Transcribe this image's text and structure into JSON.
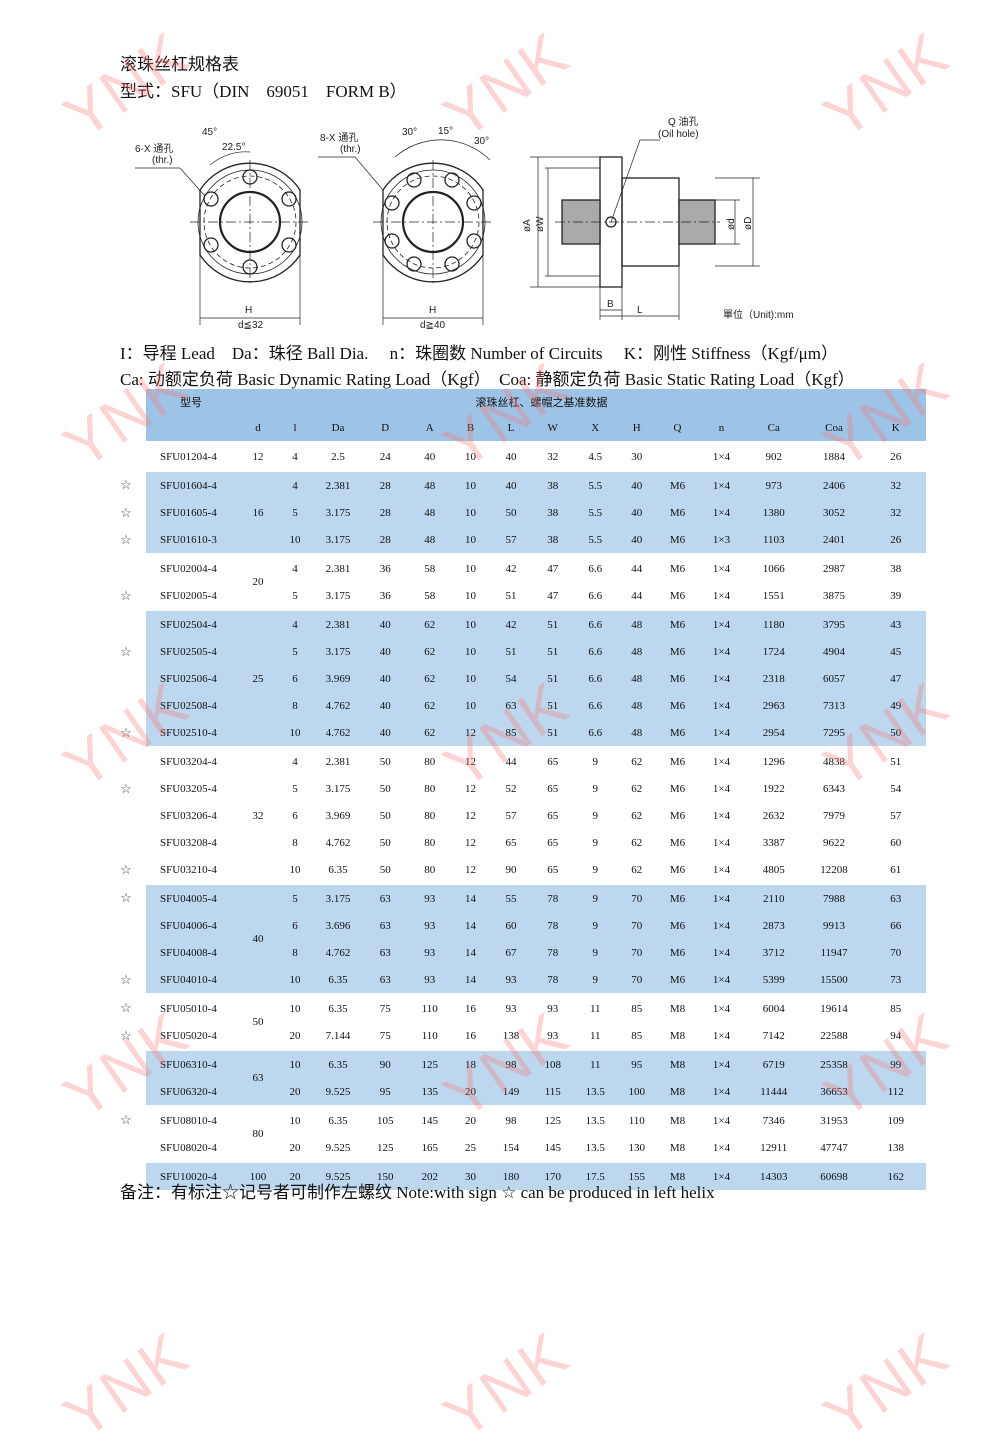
{
  "watermark": "YNK",
  "title": "滚珠丝杠规格表",
  "model_line": "型式：SFU（DIN　69051　FORM B）",
  "diagram": {
    "left_holes": "6-X 通孔",
    "left_thr": "(thr.)",
    "angle_45": "45°",
    "angle_22": "22.5°",
    "left_h": "H",
    "left_d": "d≦32",
    "mid_holes": "8-X 通孔",
    "mid_thr": "(thr.)",
    "angle_30a": "30°",
    "angle_15": "15°",
    "angle_30b": "30°",
    "mid_h": "H",
    "mid_d": "d≧40",
    "oil_hole_cn": "Q 油孔",
    "oil_hole_en": "(Oil hole)",
    "phi_a": "øA",
    "phi_w": "øW",
    "phi_d": "ød",
    "phi_D": "øD",
    "b": "B",
    "l": "L",
    "unit": "單位（Unit):mm"
  },
  "legend_line1": "I：导程 Lead　Da：珠径  Ball Dia.　 n：珠圈数  Number of Circuits　 K：刚性  Stiffness（Kgf/μm）",
  "legend_line2": "Ca: 动额定负荷  Basic Dynamic Rating Load（Kgf）　Coa: 静额定负荷  Basic Static Rating Load（Kgf）",
  "table": {
    "header_model": "型号",
    "header_group": "滚珠丝杠、螺帽之基准数据",
    "columns": [
      "d",
      "l",
      "Da",
      "D",
      "A",
      "B",
      "L",
      "W",
      "X",
      "H",
      "Q",
      "n",
      "Ca",
      "Coa",
      "K"
    ],
    "star_symbol": "☆",
    "groups": [
      {
        "d": "12",
        "shade": "white",
        "rows": [
          {
            "star": false,
            "model": "SFU01204-4",
            "v": [
              "4",
              "2.5",
              "24",
              "40",
              "10",
              "40",
              "32",
              "4.5",
              "30",
              "",
              "1×4",
              "902",
              "1884",
              "26"
            ]
          }
        ]
      },
      {
        "d": "16",
        "shade": "blue",
        "rows": [
          {
            "star": true,
            "model": "SFU01604-4",
            "v": [
              "4",
              "2.381",
              "28",
              "48",
              "10",
              "40",
              "38",
              "5.5",
              "40",
              "M6",
              "1×4",
              "973",
              "2406",
              "32"
            ]
          },
          {
            "star": true,
            "model": "SFU01605-4",
            "v": [
              "5",
              "3.175",
              "28",
              "48",
              "10",
              "50",
              "38",
              "5.5",
              "40",
              "M6",
              "1×4",
              "1380",
              "3052",
              "32"
            ]
          },
          {
            "star": true,
            "model": "SFU01610-3",
            "v": [
              "10",
              "3.175",
              "28",
              "48",
              "10",
              "57",
              "38",
              "5.5",
              "40",
              "M6",
              "1×3",
              "1103",
              "2401",
              "26"
            ]
          }
        ]
      },
      {
        "d": "20",
        "shade": "white",
        "rows": [
          {
            "star": false,
            "model": "SFU02004-4",
            "v": [
              "4",
              "2.381",
              "36",
              "58",
              "10",
              "42",
              "47",
              "6.6",
              "44",
              "M6",
              "1×4",
              "1066",
              "2987",
              "38"
            ]
          },
          {
            "star": true,
            "model": "SFU02005-4",
            "v": [
              "5",
              "3.175",
              "36",
              "58",
              "10",
              "51",
              "47",
              "6.6",
              "44",
              "M6",
              "1×4",
              "1551",
              "3875",
              "39"
            ]
          }
        ]
      },
      {
        "d": "25",
        "shade": "blue",
        "rows": [
          {
            "star": false,
            "model": "SFU02504-4",
            "v": [
              "4",
              "2.381",
              "40",
              "62",
              "10",
              "42",
              "51",
              "6.6",
              "48",
              "M6",
              "1×4",
              "1180",
              "3795",
              "43"
            ]
          },
          {
            "star": true,
            "model": "SFU02505-4",
            "v": [
              "5",
              "3.175",
              "40",
              "62",
              "10",
              "51",
              "51",
              "6.6",
              "48",
              "M6",
              "1×4",
              "1724",
              "4904",
              "45"
            ]
          },
          {
            "star": false,
            "model": "SFU02506-4",
            "v": [
              "6",
              "3.969",
              "40",
              "62",
              "10",
              "54",
              "51",
              "6.6",
              "48",
              "M6",
              "1×4",
              "2318",
              "6057",
              "47"
            ]
          },
          {
            "star": false,
            "model": "SFU02508-4",
            "v": [
              "8",
              "4.762",
              "40",
              "62",
              "10",
              "63",
              "51",
              "6.6",
              "48",
              "M6",
              "1×4",
              "2963",
              "7313",
              "49"
            ]
          },
          {
            "star": true,
            "model": "SFU02510-4",
            "v": [
              "10",
              "4.762",
              "40",
              "62",
              "12",
              "85",
              "51",
              "6.6",
              "48",
              "M6",
              "1×4",
              "2954",
              "7295",
              "50"
            ]
          }
        ]
      },
      {
        "d": "32",
        "shade": "white",
        "rows": [
          {
            "star": false,
            "model": "SFU03204-4",
            "v": [
              "4",
              "2.381",
              "50",
              "80",
              "12",
              "44",
              "65",
              "9",
              "62",
              "M6",
              "1×4",
              "1296",
              "4838",
              "51"
            ]
          },
          {
            "star": true,
            "model": "SFU03205-4",
            "v": [
              "5",
              "3.175",
              "50",
              "80",
              "12",
              "52",
              "65",
              "9",
              "62",
              "M6",
              "1×4",
              "1922",
              "6343",
              "54"
            ]
          },
          {
            "star": false,
            "model": "SFU03206-4",
            "v": [
              "6",
              "3.969",
              "50",
              "80",
              "12",
              "57",
              "65",
              "9",
              "62",
              "M6",
              "1×4",
              "2632",
              "7979",
              "57"
            ]
          },
          {
            "star": false,
            "model": "SFU03208-4",
            "v": [
              "8",
              "4.762",
              "50",
              "80",
              "12",
              "65",
              "65",
              "9",
              "62",
              "M6",
              "1×4",
              "3387",
              "9622",
              "60"
            ]
          },
          {
            "star": true,
            "model": "SFU03210-4",
            "v": [
              "10",
              "6.35",
              "50",
              "80",
              "12",
              "90",
              "65",
              "9",
              "62",
              "M6",
              "1×4",
              "4805",
              "12208",
              "61"
            ]
          }
        ]
      },
      {
        "d": "40",
        "shade": "blue",
        "rows": [
          {
            "star": true,
            "model": "SFU04005-4",
            "v": [
              "5",
              "3.175",
              "63",
              "93",
              "14",
              "55",
              "78",
              "9",
              "70",
              "M6",
              "1×4",
              "2110",
              "7988",
              "63"
            ]
          },
          {
            "star": false,
            "model": "SFU04006-4",
            "v": [
              "6",
              "3.696",
              "63",
              "93",
              "14",
              "60",
              "78",
              "9",
              "70",
              "M6",
              "1×4",
              "2873",
              "9913",
              "66"
            ]
          },
          {
            "star": false,
            "model": "SFU04008-4",
            "v": [
              "8",
              "4.762",
              "63",
              "93",
              "14",
              "67",
              "78",
              "9",
              "70",
              "M6",
              "1×4",
              "3712",
              "11947",
              "70"
            ]
          },
          {
            "star": true,
            "model": "SFU04010-4",
            "v": [
              "10",
              "6.35",
              "63",
              "93",
              "14",
              "93",
              "78",
              "9",
              "70",
              "M6",
              "1×4",
              "5399",
              "15500",
              "73"
            ]
          }
        ]
      },
      {
        "d": "50",
        "shade": "white",
        "rows": [
          {
            "star": true,
            "model": "SFU05010-4",
            "v": [
              "10",
              "6.35",
              "75",
              "110",
              "16",
              "93",
              "93",
              "11",
              "85",
              "M8",
              "1×4",
              "6004",
              "19614",
              "85"
            ]
          },
          {
            "star": true,
            "model": "SFU05020-4",
            "v": [
              "20",
              "7.144",
              "75",
              "110",
              "16",
              "138",
              "93",
              "11",
              "85",
              "M8",
              "1×4",
              "7142",
              "22588",
              "94"
            ]
          }
        ]
      },
      {
        "d": "63",
        "shade": "blue",
        "rows": [
          {
            "star": false,
            "model": "SFU06310-4",
            "v": [
              "10",
              "6.35",
              "90",
              "125",
              "18",
              "98",
              "108",
              "11",
              "95",
              "M8",
              "1×4",
              "6719",
              "25358",
              "99"
            ]
          },
          {
            "star": false,
            "model": "SFU06320-4",
            "v": [
              "20",
              "9.525",
              "95",
              "135",
              "20",
              "149",
              "115",
              "13.5",
              "100",
              "M8",
              "1×4",
              "11444",
              "36653",
              "112"
            ]
          }
        ]
      },
      {
        "d": "80",
        "shade": "white",
        "rows": [
          {
            "star": true,
            "model": "SFU08010-4",
            "v": [
              "10",
              "6.35",
              "105",
              "145",
              "20",
              "98",
              "125",
              "13.5",
              "110",
              "M8",
              "1×4",
              "7346",
              "31953",
              "109"
            ]
          },
          {
            "star": false,
            "model": "SFU08020-4",
            "v": [
              "20",
              "9.525",
              "125",
              "165",
              "25",
              "154",
              "145",
              "13.5",
              "130",
              "M8",
              "1×4",
              "12911",
              "47747",
              "138"
            ]
          }
        ]
      },
      {
        "d": "100",
        "shade": "blue",
        "rows": [
          {
            "star": false,
            "model": "SFU10020-4",
            "v": [
              "20",
              "9.525",
              "150",
              "202",
              "30",
              "180",
              "170",
              "17.5",
              "155",
              "M8",
              "1×4",
              "14303",
              "60698",
              "162"
            ]
          }
        ]
      }
    ]
  },
  "note": "备注：有标注☆记号者可制作左螺纹  Note:with sign ☆ can be produced in left helix",
  "colors": {
    "header_blue": "#9dc3e6",
    "row_blue": "#bdd7ee",
    "watermark": "#f87878"
  }
}
